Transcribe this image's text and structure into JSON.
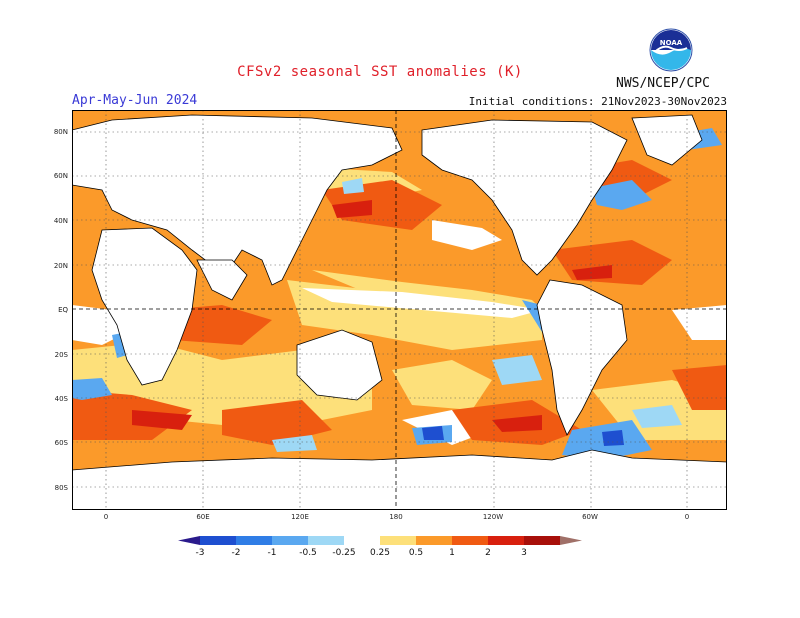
{
  "header": {
    "title": "CFSv2 seasonal SST anomalies (K)",
    "period": "Apr-May-Jun 2024",
    "initial_conditions": "Initial conditions: 21Nov2023-30Nov2023",
    "agency": "NWS/NCEP/CPC",
    "logo_text": "NOAA"
  },
  "map": {
    "lat_labels": [
      "80N",
      "60N",
      "40N",
      "20N",
      "EQ",
      "20S",
      "40S",
      "60S",
      "80S"
    ],
    "lon_labels": [
      "0",
      "60E",
      "120E",
      "180",
      "120W",
      "60W",
      "0"
    ]
  },
  "colorbar": {
    "labels": [
      "-3",
      "-2",
      "-1",
      "-0.5",
      "-0.25",
      "0.25",
      "0.5",
      "1",
      "2",
      "3"
    ],
    "colors": [
      "#2a1a8c",
      "#1e4fd0",
      "#2f7de6",
      "#5aa8f0",
      "#9ed8f5",
      "#ffffff",
      "#fde07a",
      "#fb9a2a",
      "#f05a12",
      "#d8200e",
      "#a8100a",
      "#a07068"
    ]
  }
}
